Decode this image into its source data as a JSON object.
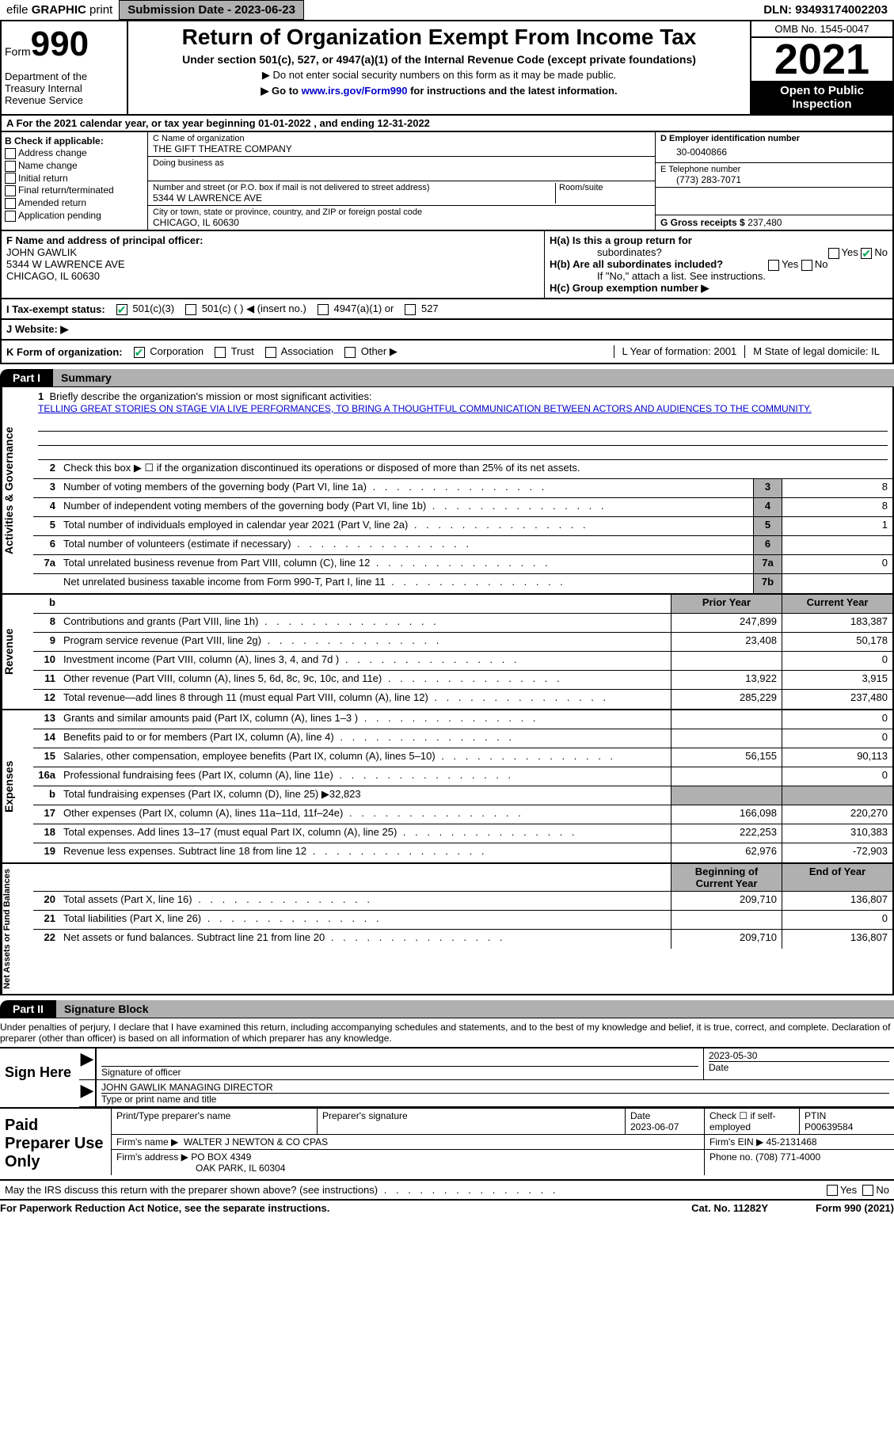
{
  "topbar": {
    "efile_prefix": "efile",
    "efile_bold": "GRAPHIC",
    "efile_suffix": "print",
    "submission": "Submission Date - 2023-06-23",
    "dln": "DLN: 93493174002203"
  },
  "header": {
    "form_label": "Form",
    "form_num": "990",
    "dept": "Department of the Treasury Internal Revenue Service",
    "title": "Return of Organization Exempt From Income Tax",
    "sub1": "Under section 501(c), 527, or 4947(a)(1) of the Internal Revenue Code (except private foundations)",
    "sub2a": "▶ Do not enter social security numbers on this form as it may be made public.",
    "sub2b_pre": "▶ Go to ",
    "sub2b_link": "www.irs.gov/Form990",
    "sub2b_post": " for instructions and the latest information.",
    "omb": "OMB No. 1545-0047",
    "year": "2021",
    "open": "Open to Public Inspection"
  },
  "row_a": "A For the 2021 calendar year, or tax year beginning 01-01-2022   , and ending 12-31-2022",
  "col_b": {
    "label": "B Check if applicable:",
    "items": [
      "Address change",
      "Name change",
      "Initial return",
      "Final return/terminated",
      "Amended return",
      "Application pending"
    ]
  },
  "col_c": {
    "name_label": "C Name of organization",
    "name": "THE GIFT THEATRE COMPANY",
    "dba_label": "Doing business as",
    "addr_label": "Number and street (or P.O. box if mail is not delivered to street address)",
    "addr": "5344 W LAWRENCE AVE",
    "room_label": "Room/suite",
    "city_label": "City or town, state or province, country, and ZIP or foreign postal code",
    "city": "CHICAGO, IL  60630"
  },
  "col_de": {
    "d_label": "D Employer identification number",
    "ein": "30-0040866",
    "e_label": "E Telephone number",
    "phone": "(773) 283-7071",
    "g_label": "G Gross receipts $",
    "gross": "237,480"
  },
  "row_f": {
    "label": "F  Name and address of principal officer:",
    "name": "JOHN GAWLIK",
    "addr": "5344 W LAWRENCE AVE",
    "city": "CHICAGO, IL  60630"
  },
  "row_h": {
    "ha": "H(a)  Is this a group return for",
    "ha_sub": "subordinates?",
    "hb": "H(b)  Are all subordinates included?",
    "hb_note": "If \"No,\" attach a list. See instructions.",
    "hc": "H(c)  Group exemption number ▶",
    "yes": "Yes",
    "no": "No"
  },
  "row_i": {
    "label": "I   Tax-exempt status:",
    "opt1": "501(c)(3)",
    "opt2": "501(c) (  ) ◀ (insert no.)",
    "opt3": "4947(a)(1) or",
    "opt4": "527"
  },
  "row_j": "J   Website: ▶",
  "row_k": {
    "label": "K Form of organization:",
    "opts": [
      "Corporation",
      "Trust",
      "Association",
      "Other ▶"
    ],
    "l": "L Year of formation: 2001",
    "m": "M State of legal domicile: IL"
  },
  "parts": {
    "p1_tab": "Part I",
    "p1_title": "Summary",
    "p2_tab": "Part II",
    "p2_title": "Signature Block"
  },
  "summary": {
    "sections": {
      "s1": "Activities & Governance",
      "s2": "Revenue",
      "s3": "Expenses",
      "s4": "Net Assets or Fund Balances"
    },
    "mission_label": "Briefly describe the organization's mission or most significant activities:",
    "mission": "TELLING GREAT STORIES ON STAGE VIA LIVE PERFORMANCES, TO BRING A THOUGHTFUL COMMUNICATION BETWEEN ACTORS AND AUDIENCES TO THE COMMUNITY.",
    "line2": "Check this box ▶ ☐ if the organization discontinued its operations or disposed of more than 25% of its net assets.",
    "headers": {
      "prior": "Prior Year",
      "current": "Current Year",
      "begin": "Beginning of Current Year",
      "end": "End of Year"
    },
    "rows": [
      {
        "n": "3",
        "t": "Number of voting members of the governing body (Part VI, line 1a)",
        "box": "3",
        "v2": "8"
      },
      {
        "n": "4",
        "t": "Number of independent voting members of the governing body (Part VI, line 1b)",
        "box": "4",
        "v2": "8"
      },
      {
        "n": "5",
        "t": "Total number of individuals employed in calendar year 2021 (Part V, line 2a)",
        "box": "5",
        "v2": "1"
      },
      {
        "n": "6",
        "t": "Total number of volunteers (estimate if necessary)",
        "box": "6",
        "v2": ""
      },
      {
        "n": "7a",
        "t": "Total unrelated business revenue from Part VIII, column (C), line 12",
        "box": "7a",
        "v2": "0"
      },
      {
        "n": "",
        "t": "Net unrelated business taxable income from Form 990-T, Part I, line 11",
        "box": "7b",
        "v2": ""
      }
    ],
    "rev_rows": [
      {
        "n": "8",
        "t": "Contributions and grants (Part VIII, line 1h)",
        "v1": "247,899",
        "v2": "183,387"
      },
      {
        "n": "9",
        "t": "Program service revenue (Part VIII, line 2g)",
        "v1": "23,408",
        "v2": "50,178"
      },
      {
        "n": "10",
        "t": "Investment income (Part VIII, column (A), lines 3, 4, and 7d )",
        "v1": "",
        "v2": "0"
      },
      {
        "n": "11",
        "t": "Other revenue (Part VIII, column (A), lines 5, 6d, 8c, 9c, 10c, and 11e)",
        "v1": "13,922",
        "v2": "3,915"
      },
      {
        "n": "12",
        "t": "Total revenue—add lines 8 through 11 (must equal Part VIII, column (A), line 12)",
        "v1": "285,229",
        "v2": "237,480"
      }
    ],
    "exp_rows": [
      {
        "n": "13",
        "t": "Grants and similar amounts paid (Part IX, column (A), lines 1–3 )",
        "v1": "",
        "v2": "0"
      },
      {
        "n": "14",
        "t": "Benefits paid to or for members (Part IX, column (A), line 4)",
        "v1": "",
        "v2": "0"
      },
      {
        "n": "15",
        "t": "Salaries, other compensation, employee benefits (Part IX, column (A), lines 5–10)",
        "v1": "56,155",
        "v2": "90,113"
      },
      {
        "n": "16a",
        "t": "Professional fundraising fees (Part IX, column (A), line 11e)",
        "v1": "",
        "v2": "0"
      },
      {
        "n": "b",
        "t": "Total fundraising expenses (Part IX, column (D), line 25) ▶32,823",
        "shade": true
      },
      {
        "n": "17",
        "t": "Other expenses (Part IX, column (A), lines 11a–11d, 11f–24e)",
        "v1": "166,098",
        "v2": "220,270"
      },
      {
        "n": "18",
        "t": "Total expenses. Add lines 13–17 (must equal Part IX, column (A), line 25)",
        "v1": "222,253",
        "v2": "310,383"
      },
      {
        "n": "19",
        "t": "Revenue less expenses. Subtract line 18 from line 12",
        "v1": "62,976",
        "v2": "-72,903"
      }
    ],
    "net_rows": [
      {
        "n": "20",
        "t": "Total assets (Part X, line 16)",
        "v1": "209,710",
        "v2": "136,807"
      },
      {
        "n": "21",
        "t": "Total liabilities (Part X, line 26)",
        "v1": "",
        "v2": "0"
      },
      {
        "n": "22",
        "t": "Net assets or fund balances. Subtract line 21 from line 20",
        "v1": "209,710",
        "v2": "136,807"
      }
    ]
  },
  "signature": {
    "disclaimer": "Under penalties of perjury, I declare that I have examined this return, including accompanying schedules and statements, and to the best of my knowledge and belief, it is true, correct, and complete. Declaration of preparer (other than officer) is based on all information of which preparer has any knowledge.",
    "sign_here": "Sign Here",
    "sig_label": "Signature of officer",
    "date_label": "Date",
    "date": "2023-05-30",
    "name": "JOHN GAWLIK MANAGING DIRECTOR",
    "name_label": "Type or print name and title"
  },
  "preparer": {
    "label": "Paid Preparer Use Only",
    "print_label": "Print/Type preparer's name",
    "sig_label": "Preparer's signature",
    "date_label": "Date",
    "date": "2023-06-07",
    "self_label": "Check ☐ if self-employed",
    "ptin_label": "PTIN",
    "ptin": "P00639584",
    "firm_name_label": "Firm's name     ▶",
    "firm_name": "WALTER J NEWTON & CO CPAS",
    "firm_ein_label": "Firm's EIN ▶",
    "firm_ein": "45-2131468",
    "firm_addr_label": "Firm's address ▶",
    "firm_addr": "PO BOX 4349",
    "firm_city": "OAK PARK, IL  60304",
    "phone_label": "Phone no.",
    "phone": "(708) 771-4000"
  },
  "discuss": {
    "text": "May the IRS discuss this return with the preparer shown above? (see instructions)",
    "yes": "Yes",
    "no": "No"
  },
  "footer": {
    "left": "For Paperwork Reduction Act Notice, see the separate instructions.",
    "mid": "Cat. No. 11282Y",
    "right": "Form 990 (2021)"
  }
}
